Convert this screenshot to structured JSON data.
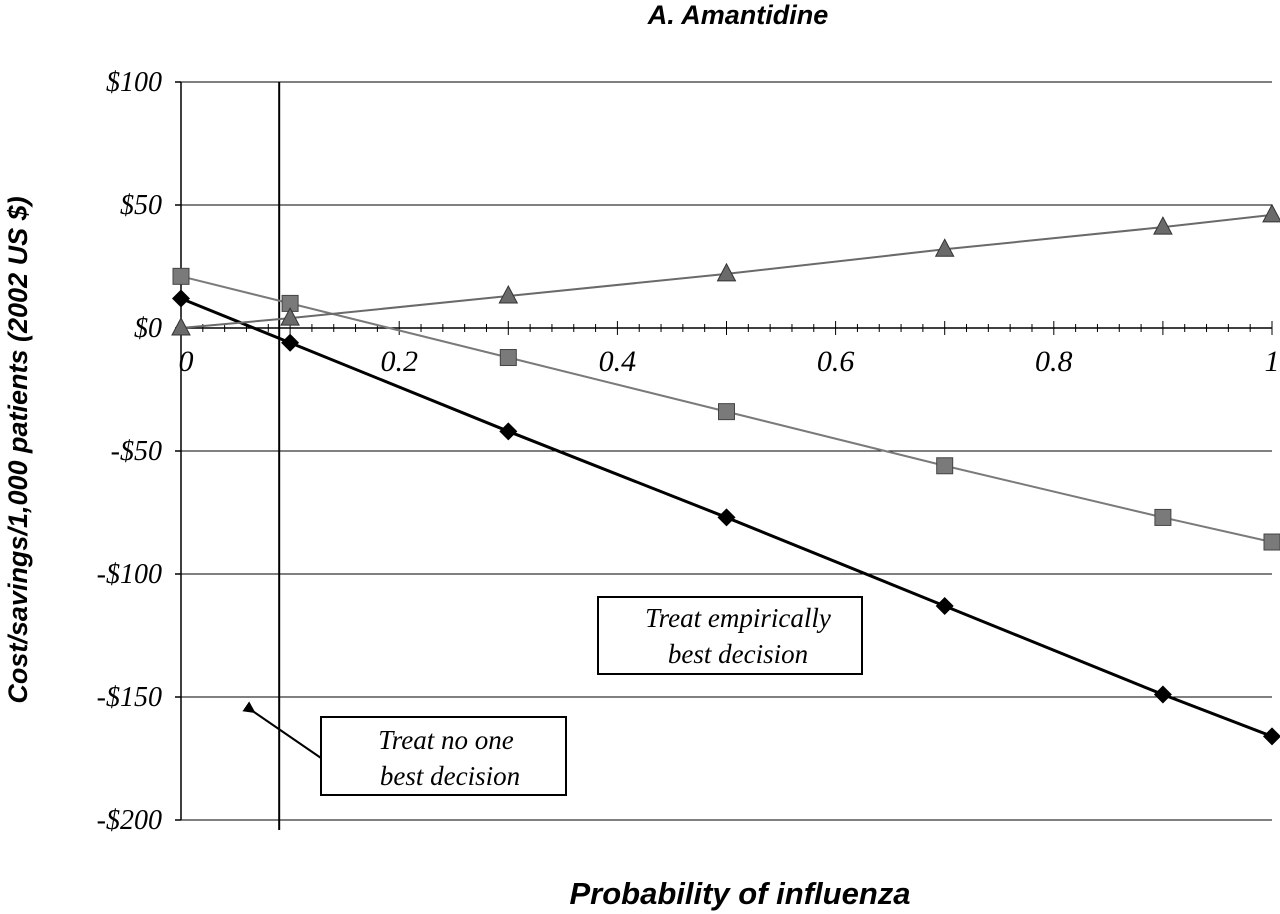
{
  "chart_data": {
    "type": "line",
    "title": "A. Amantidine",
    "xlabel": "Probability of influenza",
    "ylabel": "Cost/savings/1,000 patients (2002 US $)",
    "xlim": [
      0,
      1
    ],
    "ylim": [
      -200,
      100
    ],
    "x_ticks": [
      0,
      0.2,
      0.4,
      0.6,
      0.8,
      1
    ],
    "x_tick_labels": [
      "0",
      "0.2",
      "0.4",
      "0.6",
      "0.8",
      "1"
    ],
    "y_ticks": [
      100,
      50,
      0,
      -50,
      -100,
      -150,
      -200
    ],
    "y_tick_labels": [
      "$100",
      "$50",
      "$0",
      "-$50",
      "-$100",
      "-$150",
      "-$200"
    ],
    "grid": "horizontal",
    "threshold_x": 0.09,
    "x": [
      0,
      0.1,
      0.3,
      0.5,
      0.7,
      0.9,
      1.0
    ],
    "series": [
      {
        "marker": "diamond",
        "color": "#000000",
        "values": [
          12,
          -6,
          -42,
          -77,
          -113,
          -149,
          -166
        ]
      },
      {
        "marker": "square",
        "color": "#7a7a7a",
        "values": [
          21,
          10,
          -12,
          -34,
          -56,
          -77,
          -87
        ]
      },
      {
        "marker": "triangle",
        "color": "#6a6a6a",
        "values": [
          0,
          4,
          13,
          22,
          32,
          41,
          46
        ]
      }
    ],
    "annotations": [
      {
        "lines": [
          "Treat empirically",
          "best decision"
        ]
      },
      {
        "lines": [
          "Treat no one",
          "best decision"
        ]
      }
    ]
  }
}
